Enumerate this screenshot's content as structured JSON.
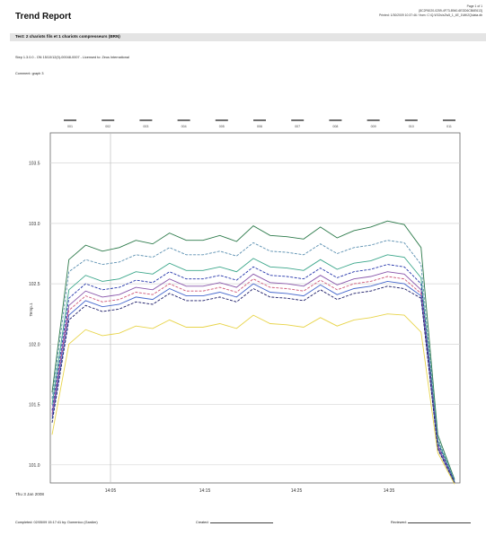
{
  "report": {
    "title": "Trend Report",
    "page": "Page 1 of 1",
    "doc_id": "{8C2F6020-0259-4F73-8940-6EDD6CB6E613}",
    "printed": "Printed: 1/30/2009 10:37:46 / from: C:\\Q-\\ISOs\\s2\\s5_1_4E_1\\Mt\\2Q\\data.db",
    "section_title": "Test: 2 chariots fils et 1 chariots compresseurs (BRN)",
    "info_line": "Step 1.3.0.0 - ON 15/10/12(0)-00048-0007 - Licensed to: Zeus International",
    "comment": "Comment: graph 3"
  },
  "footer": {
    "completed": "Completed: 02/05/09 15:17:41 by: Domenico (Gardier)",
    "created": "Created:",
    "reviewed": "Reviewed:"
  },
  "chart_data": {
    "type": "line",
    "title": "",
    "xlabel": "",
    "ylabel": "Temp.1",
    "date_label": "Thu 3 Jan 2008",
    "yticks": [
      "103.5",
      "103.0",
      "102.5",
      "102.0",
      "101.5",
      "101.0"
    ],
    "ylim": [
      100.85,
      103.75
    ],
    "xticks": [
      "14:05",
      "14:15",
      "14:25",
      "14:35"
    ],
    "top_labels": [
      "001",
      "002",
      "003",
      "004",
      "005",
      "006",
      "007",
      "008",
      "009",
      "010",
      "011"
    ],
    "grid": true,
    "x": [
      0,
      1,
      2,
      3,
      4,
      5,
      6,
      7,
      8,
      9,
      10,
      11,
      12,
      13,
      14,
      15,
      16,
      17,
      18,
      19,
      20,
      21,
      22,
      23,
      24
    ],
    "series": [
      {
        "color": "#2c7a4a",
        "values": [
          101.6,
          102.7,
          102.82,
          102.77,
          102.8,
          102.86,
          102.83,
          102.92,
          102.86,
          102.86,
          102.9,
          102.85,
          102.98,
          102.9,
          102.89,
          102.87,
          102.97,
          102.88,
          102.94,
          102.97,
          103.02,
          102.99,
          102.8,
          101.25,
          100.88
        ]
      },
      {
        "color": "#5a8fb0",
        "values": [
          101.55,
          102.6,
          102.7,
          102.66,
          102.68,
          102.74,
          102.72,
          102.8,
          102.74,
          102.74,
          102.77,
          102.73,
          102.84,
          102.77,
          102.76,
          102.74,
          102.83,
          102.75,
          102.8,
          102.82,
          102.86,
          102.84,
          102.66,
          101.22,
          100.87
        ]
      },
      {
        "color": "#3aa68a",
        "values": [
          101.5,
          102.45,
          102.57,
          102.52,
          102.54,
          102.6,
          102.58,
          102.67,
          102.61,
          102.61,
          102.64,
          102.6,
          102.71,
          102.64,
          102.63,
          102.61,
          102.7,
          102.62,
          102.67,
          102.69,
          102.74,
          102.72,
          102.55,
          101.2,
          100.86
        ]
      },
      {
        "color": "#2233aa",
        "values": [
          101.45,
          102.38,
          102.5,
          102.45,
          102.47,
          102.53,
          102.51,
          102.6,
          102.54,
          102.54,
          102.57,
          102.53,
          102.64,
          102.57,
          102.56,
          102.54,
          102.63,
          102.55,
          102.6,
          102.62,
          102.66,
          102.64,
          102.5,
          101.18,
          100.86
        ]
      },
      {
        "color": "#8855aa",
        "values": [
          101.42,
          102.32,
          102.44,
          102.39,
          102.41,
          102.47,
          102.45,
          102.54,
          102.48,
          102.48,
          102.51,
          102.47,
          102.58,
          102.51,
          102.5,
          102.48,
          102.57,
          102.49,
          102.54,
          102.56,
          102.6,
          102.58,
          102.45,
          101.16,
          100.85
        ]
      },
      {
        "color": "#cc5577",
        "values": [
          101.4,
          102.28,
          102.4,
          102.35,
          102.37,
          102.43,
          102.41,
          102.5,
          102.44,
          102.44,
          102.47,
          102.43,
          102.54,
          102.47,
          102.46,
          102.44,
          102.53,
          102.45,
          102.5,
          102.52,
          102.56,
          102.54,
          102.42,
          101.15,
          100.85
        ]
      },
      {
        "color": "#4466cc",
        "values": [
          101.38,
          102.24,
          102.36,
          102.31,
          102.33,
          102.39,
          102.37,
          102.46,
          102.4,
          102.4,
          102.43,
          102.39,
          102.5,
          102.43,
          102.42,
          102.4,
          102.49,
          102.41,
          102.46,
          102.48,
          102.52,
          102.5,
          102.4,
          101.14,
          100.85
        ]
      },
      {
        "color": "#1a1a66",
        "values": [
          101.35,
          102.2,
          102.32,
          102.27,
          102.29,
          102.35,
          102.33,
          102.42,
          102.36,
          102.36,
          102.39,
          102.35,
          102.46,
          102.39,
          102.38,
          102.36,
          102.45,
          102.37,
          102.42,
          102.44,
          102.48,
          102.46,
          102.38,
          101.13,
          100.85
        ]
      },
      {
        "color": "#e8d44a",
        "values": [
          101.25,
          102.0,
          102.12,
          102.07,
          102.09,
          102.15,
          102.13,
          102.2,
          102.14,
          102.14,
          102.17,
          102.13,
          102.24,
          102.17,
          102.16,
          102.14,
          102.22,
          102.15,
          102.2,
          102.22,
          102.25,
          102.24,
          102.1,
          101.1,
          100.84
        ]
      }
    ]
  }
}
